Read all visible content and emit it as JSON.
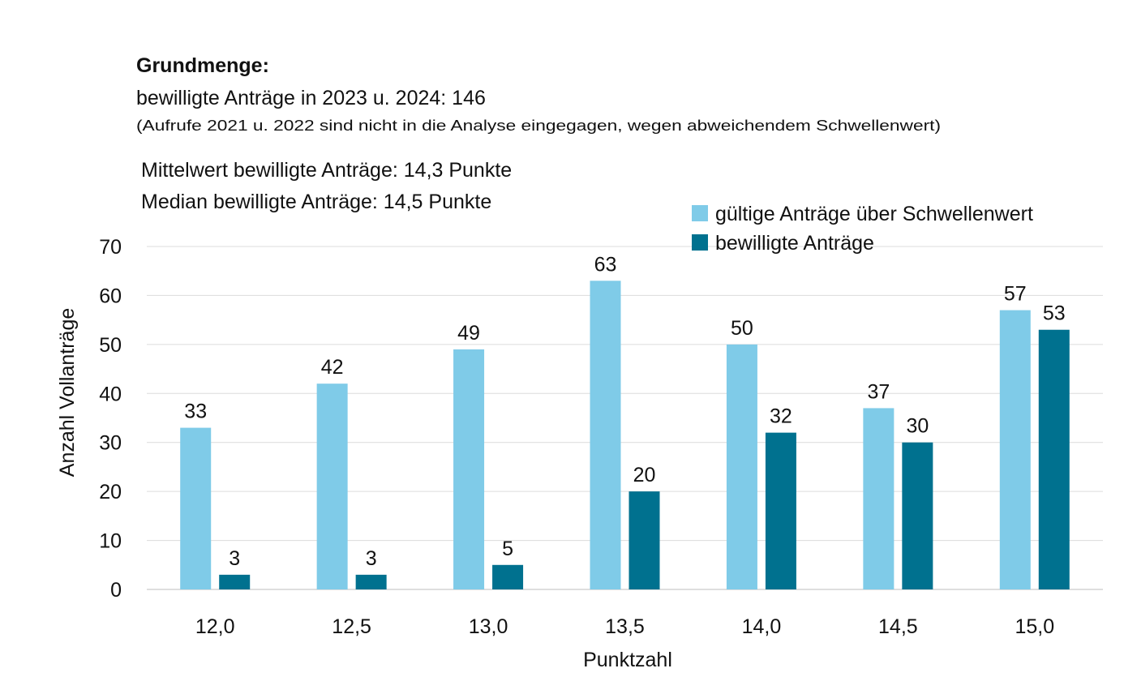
{
  "header": {
    "heading": "Grundmenge:",
    "line1": "bewilligte Anträge in 2023 u. 2024: 146",
    "note": "(Aufrufe 2021 u. 2022 sind nicht in die Analyse eingegagen, wegen abweichendem Schwellenwert)",
    "mean": "Mittelwert bewilligte Anträge: 14,3 Punkte",
    "median": "Median bewilligte Anträge: 14,5 Punkte"
  },
  "chart_data": {
    "type": "bar",
    "title": "",
    "xlabel": "Punktzahl",
    "ylabel": "Anzahl Vollanträge",
    "ylim": [
      0,
      70
    ],
    "yticks": [
      "0",
      "10",
      "20",
      "30",
      "40",
      "50",
      "60",
      "70"
    ],
    "categories": [
      "12,0",
      "12,5",
      "13,0",
      "13,5",
      "14,0",
      "14,5",
      "15,0"
    ],
    "series": [
      {
        "name": "gültige Anträge über Schwellenwert",
        "color": "#7fcbe8",
        "values": [
          33,
          42,
          49,
          63,
          50,
          37,
          57
        ]
      },
      {
        "name": "bewilligte Anträge",
        "color": "#00718f",
        "values": [
          3,
          3,
          5,
          20,
          32,
          30,
          53
        ]
      }
    ],
    "grid": true,
    "legend_position": "top-right"
  }
}
